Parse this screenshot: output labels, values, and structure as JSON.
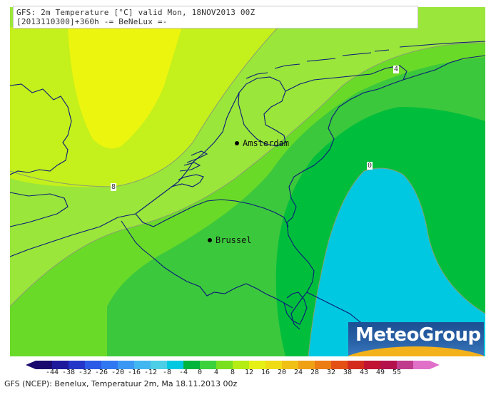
{
  "header": {
    "line1": "GFS: 2m Temperature [°C] valid Mon, 18NOV2013 00Z",
    "line2": "[2013110300]+360h -= BeNeLux =-"
  },
  "cities": [
    {
      "name": "Amsterdam",
      "icon": "city-dot"
    },
    {
      "name": "Brussel",
      "icon": "city-dot"
    }
  ],
  "contour_labels": [
    "4",
    "8",
    "0"
  ],
  "logo": {
    "text": "MeteoGroup"
  },
  "legend": {
    "ticks": [
      "-44",
      "-38",
      "-32",
      "-26",
      "-20",
      "-16",
      "-12",
      "-8",
      "-4",
      "0",
      "4",
      "8",
      "12",
      "16",
      "20",
      "24",
      "28",
      "32",
      "38",
      "43",
      "49",
      "55"
    ],
    "colors": [
      "#1a0a6e",
      "#1f1a9c",
      "#2436c8",
      "#2a5ae6",
      "#3078f2",
      "#3a98f4",
      "#42b6f0",
      "#4ccfe6",
      "#00c8e0",
      "#00b43c",
      "#3cd23c",
      "#78e01e",
      "#b4ec14",
      "#e6f014",
      "#f0dc14",
      "#f0c014",
      "#f0a014",
      "#ec7c14",
      "#e45014",
      "#d42a1e",
      "#c01432",
      "#b4104c",
      "#c03c8c",
      "#e070c8"
    ]
  },
  "caption": "GFS (NCEP): Benelux, Temperatuur 2m, Ma 18.11.2013 00z"
}
